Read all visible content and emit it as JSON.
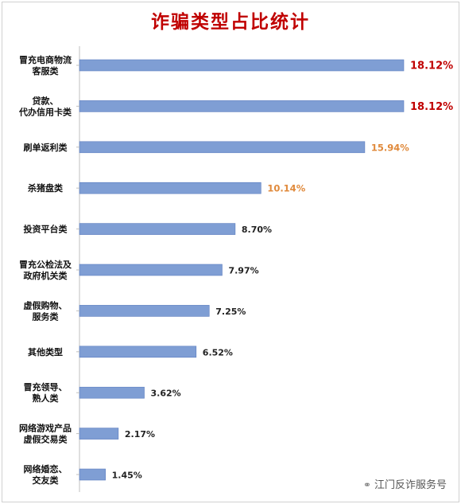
{
  "chart_data": {
    "type": "bar",
    "orientation": "horizontal",
    "title": "诈骗类型占比统计",
    "title_color": "#c00000",
    "bar_color": "#7f9ed4",
    "bar_edge_color": "#5b7cbf",
    "label_colors": {
      "top": "#c00000",
      "mid": "#e08a3c",
      "normal": "#222222"
    },
    "categories": [
      [
        "冒充电商物流",
        "客服类"
      ],
      [
        "贷款、",
        "代办信用卡类"
      ],
      [
        "刷单返利类"
      ],
      [
        "杀猪盘类"
      ],
      [
        "投资平台类"
      ],
      [
        "冒充公检法及",
        "政府机关类"
      ],
      [
        "虚假购物、",
        "服务类"
      ],
      [
        "其他类型"
      ],
      [
        "冒充领导、",
        "熟人类"
      ],
      [
        "网络游戏产品",
        "虚假交易类"
      ],
      [
        "网络婚恋、",
        "交友类"
      ]
    ],
    "values": [
      18.12,
      18.12,
      15.94,
      10.14,
      8.7,
      7.97,
      7.25,
      6.52,
      3.62,
      2.17,
      1.45
    ],
    "value_labels": [
      "18.12%",
      "18.12%",
      "15.94%",
      "10.14%",
      "8.70%",
      "7.97%",
      "7.25%",
      "6.52%",
      "3.62%",
      "2.17%",
      "1.45%"
    ],
    "label_tier": [
      "top",
      "top",
      "mid",
      "mid",
      "normal",
      "normal",
      "normal",
      "normal",
      "normal",
      "normal",
      "normal"
    ],
    "xlim": [
      0,
      18.12
    ],
    "grid": false,
    "legend": "none"
  },
  "watermark": {
    "text": "江门反诈服务号",
    "icon": "wechat-icon"
  }
}
